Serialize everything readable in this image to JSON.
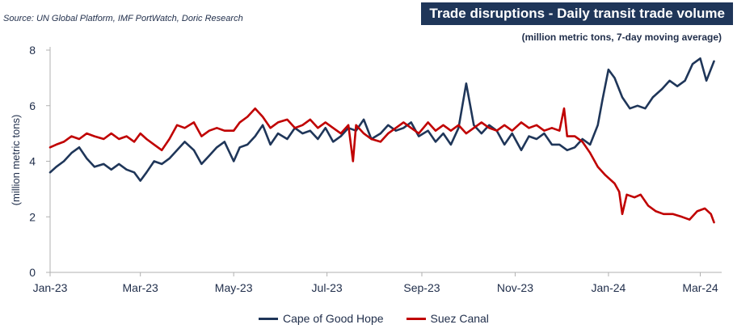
{
  "source": "Source: UN Global Platform, IMF PortWatch, Doric Research",
  "title": "Trade disruptions - Daily transit trade volume",
  "subtitle": "(million metric tons, 7-day moving average)",
  "chart_data": {
    "type": "line",
    "ylabel": "(million metric tons)",
    "xlabel": "",
    "ylim": [
      0,
      8
    ],
    "yticks": [
      0,
      2,
      4,
      6,
      8
    ],
    "xlim": [
      "2023-01-01",
      "2024-03-15"
    ],
    "xticks": [
      {
        "date": "2023-01-01",
        "label": "Jan-23"
      },
      {
        "date": "2023-03-01",
        "label": "Mar-23"
      },
      {
        "date": "2023-05-01",
        "label": "May-23"
      },
      {
        "date": "2023-07-01",
        "label": "Jul-23"
      },
      {
        "date": "2023-09-01",
        "label": "Sep-23"
      },
      {
        "date": "2023-11-01",
        "label": "Nov-23"
      },
      {
        "date": "2024-01-01",
        "label": "Jan-24"
      },
      {
        "date": "2024-03-01",
        "label": "Mar-24"
      }
    ],
    "grid": false,
    "legend_position": "bottom",
    "series": [
      {
        "name": "Cape of Good Hope",
        "color": "#1f3659",
        "points": [
          [
            "2023-01-01",
            3.6
          ],
          [
            "2023-01-05",
            3.8
          ],
          [
            "2023-01-10",
            4.0
          ],
          [
            "2023-01-15",
            4.3
          ],
          [
            "2023-01-20",
            4.5
          ],
          [
            "2023-01-25",
            4.1
          ],
          [
            "2023-01-30",
            3.8
          ],
          [
            "2023-02-05",
            3.9
          ],
          [
            "2023-02-10",
            3.7
          ],
          [
            "2023-02-15",
            3.9
          ],
          [
            "2023-02-20",
            3.7
          ],
          [
            "2023-02-25",
            3.6
          ],
          [
            "2023-03-01",
            3.3
          ],
          [
            "2023-03-05",
            3.6
          ],
          [
            "2023-03-10",
            4.0
          ],
          [
            "2023-03-15",
            3.9
          ],
          [
            "2023-03-20",
            4.1
          ],
          [
            "2023-03-25",
            4.4
          ],
          [
            "2023-03-30",
            4.7
          ],
          [
            "2023-04-05",
            4.4
          ],
          [
            "2023-04-10",
            3.9
          ],
          [
            "2023-04-15",
            4.2
          ],
          [
            "2023-04-20",
            4.5
          ],
          [
            "2023-04-25",
            4.7
          ],
          [
            "2023-05-01",
            4.0
          ],
          [
            "2023-05-05",
            4.5
          ],
          [
            "2023-05-10",
            4.6
          ],
          [
            "2023-05-15",
            4.9
          ],
          [
            "2023-05-20",
            5.3
          ],
          [
            "2023-05-25",
            4.6
          ],
          [
            "2023-05-30",
            5.0
          ],
          [
            "2023-06-05",
            4.8
          ],
          [
            "2023-06-10",
            5.2
          ],
          [
            "2023-06-15",
            5.0
          ],
          [
            "2023-06-20",
            5.1
          ],
          [
            "2023-06-25",
            4.8
          ],
          [
            "2023-06-30",
            5.2
          ],
          [
            "2023-07-05",
            4.7
          ],
          [
            "2023-07-10",
            4.9
          ],
          [
            "2023-07-15",
            5.2
          ],
          [
            "2023-07-20",
            5.1
          ],
          [
            "2023-07-25",
            5.5
          ],
          [
            "2023-07-30",
            4.8
          ],
          [
            "2023-08-05",
            5.0
          ],
          [
            "2023-08-10",
            5.3
          ],
          [
            "2023-08-15",
            5.1
          ],
          [
            "2023-08-20",
            5.2
          ],
          [
            "2023-08-25",
            5.4
          ],
          [
            "2023-08-30",
            4.9
          ],
          [
            "2023-09-05",
            5.1
          ],
          [
            "2023-09-10",
            4.7
          ],
          [
            "2023-09-15",
            5.0
          ],
          [
            "2023-09-20",
            4.6
          ],
          [
            "2023-09-25",
            5.2
          ],
          [
            "2023-09-30",
            6.8
          ],
          [
            "2023-10-05",
            5.3
          ],
          [
            "2023-10-10",
            5.0
          ],
          [
            "2023-10-15",
            5.3
          ],
          [
            "2023-10-20",
            5.1
          ],
          [
            "2023-10-25",
            4.6
          ],
          [
            "2023-10-30",
            5.0
          ],
          [
            "2023-11-05",
            4.4
          ],
          [
            "2023-11-10",
            4.9
          ],
          [
            "2023-11-15",
            4.8
          ],
          [
            "2023-11-20",
            5.0
          ],
          [
            "2023-11-25",
            4.6
          ],
          [
            "2023-11-30",
            4.6
          ],
          [
            "2023-12-05",
            4.4
          ],
          [
            "2023-12-10",
            4.5
          ],
          [
            "2023-12-15",
            4.8
          ],
          [
            "2023-12-20",
            4.6
          ],
          [
            "2023-12-25",
            5.3
          ],
          [
            "2023-12-28",
            6.2
          ],
          [
            "2024-01-01",
            7.3
          ],
          [
            "2024-01-05",
            7.0
          ],
          [
            "2024-01-10",
            6.3
          ],
          [
            "2024-01-15",
            5.9
          ],
          [
            "2024-01-20",
            6.0
          ],
          [
            "2024-01-25",
            5.9
          ],
          [
            "2024-01-30",
            6.3
          ],
          [
            "2024-02-05",
            6.6
          ],
          [
            "2024-02-10",
            6.9
          ],
          [
            "2024-02-15",
            6.7
          ],
          [
            "2024-02-20",
            6.9
          ],
          [
            "2024-02-25",
            7.5
          ],
          [
            "2024-03-01",
            7.7
          ],
          [
            "2024-03-05",
            6.9
          ],
          [
            "2024-03-10",
            7.6
          ]
        ]
      },
      {
        "name": "Suez Canal",
        "color": "#c00000",
        "points": [
          [
            "2023-01-01",
            4.5
          ],
          [
            "2023-01-05",
            4.6
          ],
          [
            "2023-01-10",
            4.7
          ],
          [
            "2023-01-15",
            4.9
          ],
          [
            "2023-01-20",
            4.8
          ],
          [
            "2023-01-25",
            5.0
          ],
          [
            "2023-01-30",
            4.9
          ],
          [
            "2023-02-05",
            4.8
          ],
          [
            "2023-02-10",
            5.0
          ],
          [
            "2023-02-15",
            4.8
          ],
          [
            "2023-02-20",
            4.9
          ],
          [
            "2023-02-25",
            4.7
          ],
          [
            "2023-03-01",
            5.0
          ],
          [
            "2023-03-05",
            4.8
          ],
          [
            "2023-03-10",
            4.6
          ],
          [
            "2023-03-15",
            4.4
          ],
          [
            "2023-03-20",
            4.8
          ],
          [
            "2023-03-25",
            5.3
          ],
          [
            "2023-03-30",
            5.2
          ],
          [
            "2023-04-05",
            5.4
          ],
          [
            "2023-04-10",
            4.9
          ],
          [
            "2023-04-15",
            5.1
          ],
          [
            "2023-04-20",
            5.2
          ],
          [
            "2023-04-25",
            5.1
          ],
          [
            "2023-05-01",
            5.1
          ],
          [
            "2023-05-05",
            5.4
          ],
          [
            "2023-05-10",
            5.6
          ],
          [
            "2023-05-15",
            5.9
          ],
          [
            "2023-05-20",
            5.6
          ],
          [
            "2023-05-25",
            5.2
          ],
          [
            "2023-05-30",
            5.4
          ],
          [
            "2023-06-05",
            5.5
          ],
          [
            "2023-06-10",
            5.2
          ],
          [
            "2023-06-15",
            5.3
          ],
          [
            "2023-06-20",
            5.5
          ],
          [
            "2023-06-25",
            5.2
          ],
          [
            "2023-06-30",
            5.4
          ],
          [
            "2023-07-05",
            5.2
          ],
          [
            "2023-07-10",
            5.0
          ],
          [
            "2023-07-15",
            5.3
          ],
          [
            "2023-07-18",
            4.0
          ],
          [
            "2023-07-20",
            5.3
          ],
          [
            "2023-07-25",
            5.0
          ],
          [
            "2023-07-30",
            4.8
          ],
          [
            "2023-08-05",
            4.7
          ],
          [
            "2023-08-10",
            5.0
          ],
          [
            "2023-08-15",
            5.2
          ],
          [
            "2023-08-20",
            5.4
          ],
          [
            "2023-08-25",
            5.2
          ],
          [
            "2023-08-30",
            5.0
          ],
          [
            "2023-09-05",
            5.4
          ],
          [
            "2023-09-10",
            5.1
          ],
          [
            "2023-09-15",
            5.3
          ],
          [
            "2023-09-20",
            5.1
          ],
          [
            "2023-09-25",
            5.3
          ],
          [
            "2023-09-30",
            5.0
          ],
          [
            "2023-10-05",
            5.2
          ],
          [
            "2023-10-10",
            5.4
          ],
          [
            "2023-10-15",
            5.2
          ],
          [
            "2023-10-20",
            5.1
          ],
          [
            "2023-10-25",
            5.3
          ],
          [
            "2023-10-30",
            5.1
          ],
          [
            "2023-11-05",
            5.4
          ],
          [
            "2023-11-10",
            5.2
          ],
          [
            "2023-11-15",
            5.3
          ],
          [
            "2023-11-20",
            5.1
          ],
          [
            "2023-11-25",
            5.2
          ],
          [
            "2023-11-30",
            5.1
          ],
          [
            "2023-12-03",
            5.9
          ],
          [
            "2023-12-05",
            4.9
          ],
          [
            "2023-12-10",
            4.9
          ],
          [
            "2023-12-15",
            4.7
          ],
          [
            "2023-12-20",
            4.3
          ],
          [
            "2023-12-25",
            3.8
          ],
          [
            "2023-12-30",
            3.5
          ],
          [
            "2024-01-05",
            3.2
          ],
          [
            "2024-01-08",
            2.9
          ],
          [
            "2024-01-10",
            2.1
          ],
          [
            "2024-01-13",
            2.8
          ],
          [
            "2024-01-18",
            2.7
          ],
          [
            "2024-01-22",
            2.8
          ],
          [
            "2024-01-27",
            2.4
          ],
          [
            "2024-02-01",
            2.2
          ],
          [
            "2024-02-06",
            2.1
          ],
          [
            "2024-02-12",
            2.1
          ],
          [
            "2024-02-18",
            2.0
          ],
          [
            "2024-02-23",
            1.9
          ],
          [
            "2024-02-28",
            2.2
          ],
          [
            "2024-03-04",
            2.3
          ],
          [
            "2024-03-08",
            2.1
          ],
          [
            "2024-03-10",
            1.8
          ]
        ]
      }
    ]
  }
}
